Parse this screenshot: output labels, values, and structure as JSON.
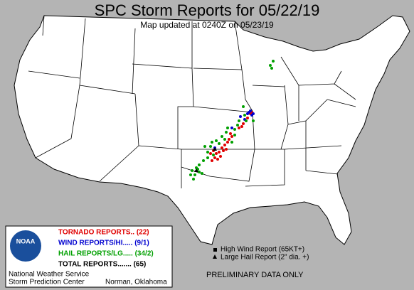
{
  "header": {
    "title": "SPC Storm Reports for 05/22/19",
    "subtitle": "Map updated at 0240Z on 05/23/19"
  },
  "legend": {
    "tornado": "TORNADO REPORTS.. (22)",
    "wind": "WIND REPORTS/HI..... (9/1)",
    "hail": "HAIL REPORTS/LG..... (34/2)",
    "total": "TOTAL REPORTS....... (65)",
    "high_wind": "High Wind Report (65KT+)",
    "large_hail": "Large Hail Report (2\" dia. +)"
  },
  "logo": "NOAA",
  "footer": {
    "line1": "National Weather Service",
    "line2": "Storm Prediction Center",
    "city": "Norman, Oklahoma",
    "notice": "PRELIMINARY DATA ONLY"
  }
}
